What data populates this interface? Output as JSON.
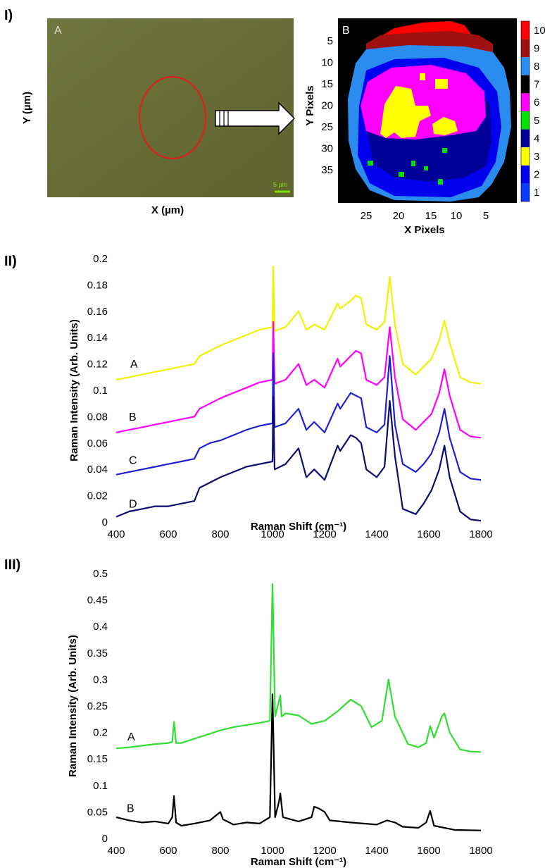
{
  "panels": {
    "p1": "I)",
    "p2": "II)",
    "p3": "III)"
  },
  "micrograph": {
    "label": "A",
    "xlabel": "X (µm)",
    "ylabel": "Y (µm)",
    "scalebar": "5 µm",
    "colors": {
      "background": "#6b7038",
      "circle": "#e0201c",
      "scalebar": "#7fe000"
    }
  },
  "cluster_map": {
    "label": "B",
    "xlabel": "X Pixels",
    "ylabel": "Y Pixels",
    "x_ticks": [
      "25",
      "20",
      "15",
      "10",
      "5"
    ],
    "y_ticks": [
      "5",
      "10",
      "15",
      "20",
      "25",
      "30",
      "35"
    ],
    "colorbar": [
      {
        "value": "10",
        "color": "#ff0000"
      },
      {
        "value": "9",
        "color": "#a01010"
      },
      {
        "value": "8",
        "color": "#2b8cf0"
      },
      {
        "value": "7",
        "color": "#000000"
      },
      {
        "value": "6",
        "color": "#ff00ff"
      },
      {
        "value": "5",
        "color": "#00e000"
      },
      {
        "value": "4",
        "color": "#000099"
      },
      {
        "value": "3",
        "color": "#ffff00"
      },
      {
        "value": "2",
        "color": "#0000ee"
      },
      {
        "value": "1",
        "color": "#0a3cff"
      }
    ]
  },
  "chart_data": [
    {
      "type": "line",
      "xlabel": "Raman Shift (cm⁻¹)",
      "ylabel": "Raman Intensity (Arb. Units)",
      "xlim": [
        400,
        1800
      ],
      "ylim": [
        0,
        0.2
      ],
      "x_ticks": [
        "400",
        "600",
        "800",
        "1000",
        "1200",
        "1400",
        "1600",
        "1800"
      ],
      "y_ticks": [
        "0",
        "0.02",
        "0.04",
        "0.06",
        "0.08",
        "0.1",
        "0.12",
        "0.14",
        "0.16",
        "0.18",
        "0.2"
      ],
      "series": [
        {
          "name": "A",
          "color": "#f2f200",
          "x": [
            400,
            450,
            500,
            550,
            600,
            650,
            700,
            720,
            760,
            800,
            850,
            900,
            950,
            1000,
            1003,
            1008,
            1050,
            1100,
            1130,
            1160,
            1200,
            1250,
            1260,
            1300,
            1320,
            1340,
            1360,
            1400,
            1430,
            1450,
            1470,
            1500,
            1550,
            1580,
            1610,
            1640,
            1660,
            1680,
            1720,
            1760,
            1800
          ],
          "y": [
            0.108,
            0.11,
            0.112,
            0.114,
            0.116,
            0.118,
            0.12,
            0.126,
            0.13,
            0.134,
            0.138,
            0.142,
            0.146,
            0.148,
            0.194,
            0.145,
            0.148,
            0.16,
            0.146,
            0.15,
            0.146,
            0.166,
            0.162,
            0.168,
            0.172,
            0.17,
            0.15,
            0.146,
            0.152,
            0.186,
            0.15,
            0.12,
            0.112,
            0.118,
            0.124,
            0.138,
            0.153,
            0.136,
            0.11,
            0.106,
            0.105
          ]
        },
        {
          "name": "B",
          "color": "#ff00ff",
          "x": [
            400,
            450,
            500,
            550,
            600,
            650,
            700,
            720,
            760,
            800,
            850,
            900,
            950,
            1000,
            1003,
            1008,
            1050,
            1100,
            1130,
            1160,
            1200,
            1250,
            1260,
            1300,
            1320,
            1340,
            1360,
            1400,
            1430,
            1450,
            1470,
            1500,
            1550,
            1580,
            1610,
            1640,
            1660,
            1680,
            1720,
            1760,
            1800
          ],
          "y": [
            0.068,
            0.07,
            0.072,
            0.074,
            0.076,
            0.078,
            0.08,
            0.086,
            0.09,
            0.094,
            0.098,
            0.102,
            0.106,
            0.108,
            0.152,
            0.105,
            0.108,
            0.12,
            0.104,
            0.108,
            0.102,
            0.124,
            0.118,
            0.126,
            0.13,
            0.128,
            0.108,
            0.104,
            0.11,
            0.148,
            0.11,
            0.078,
            0.07,
            0.076,
            0.082,
            0.098,
            0.116,
            0.096,
            0.07,
            0.065,
            0.064
          ]
        },
        {
          "name": "C",
          "color": "#2020d0",
          "x": [
            400,
            450,
            500,
            550,
            600,
            650,
            700,
            720,
            760,
            800,
            850,
            900,
            950,
            1000,
            1003,
            1008,
            1050,
            1100,
            1130,
            1160,
            1200,
            1250,
            1260,
            1300,
            1320,
            1340,
            1360,
            1400,
            1430,
            1450,
            1470,
            1500,
            1550,
            1580,
            1610,
            1640,
            1660,
            1680,
            1720,
            1760,
            1800
          ],
          "y": [
            0.036,
            0.038,
            0.04,
            0.042,
            0.044,
            0.046,
            0.048,
            0.056,
            0.06,
            0.062,
            0.066,
            0.07,
            0.073,
            0.075,
            0.128,
            0.072,
            0.075,
            0.086,
            0.07,
            0.076,
            0.068,
            0.09,
            0.086,
            0.098,
            0.096,
            0.094,
            0.072,
            0.068,
            0.074,
            0.126,
            0.074,
            0.044,
            0.038,
            0.044,
            0.052,
            0.068,
            0.086,
            0.064,
            0.038,
            0.033,
            0.032
          ]
        },
        {
          "name": "D",
          "color": "#0c0c70",
          "x": [
            400,
            450,
            500,
            550,
            600,
            650,
            700,
            720,
            760,
            800,
            850,
            900,
            950,
            1000,
            1003,
            1008,
            1050,
            1100,
            1130,
            1160,
            1200,
            1250,
            1260,
            1300,
            1320,
            1340,
            1360,
            1400,
            1430,
            1450,
            1470,
            1500,
            1550,
            1580,
            1610,
            1640,
            1660,
            1680,
            1720,
            1760,
            1800
          ],
          "y": [
            0.004,
            0.008,
            0.01,
            0.012,
            0.012,
            0.014,
            0.016,
            0.026,
            0.03,
            0.034,
            0.038,
            0.042,
            0.044,
            0.046,
            0.095,
            0.04,
            0.044,
            0.056,
            0.034,
            0.04,
            0.032,
            0.058,
            0.054,
            0.066,
            0.064,
            0.06,
            0.04,
            0.034,
            0.042,
            0.092,
            0.05,
            0.01,
            0.006,
            0.014,
            0.024,
            0.04,
            0.058,
            0.034,
            0.008,
            0.002,
            0.001
          ]
        }
      ]
    },
    {
      "type": "line",
      "xlabel": "Raman Shift (cm⁻¹)",
      "ylabel": "Raman Intensity (Arb. Units)",
      "xlim": [
        400,
        1800
      ],
      "ylim": [
        0,
        0.5
      ],
      "x_ticks": [
        "400",
        "600",
        "800",
        "1000",
        "1200",
        "1400",
        "1600",
        "1800"
      ],
      "y_ticks": [
        "0",
        "0.05",
        "0.1",
        "0.15",
        "0.2",
        "0.25",
        "0.3",
        "0.35",
        "0.4",
        "0.45",
        "0.5"
      ],
      "series": [
        {
          "name": "A",
          "color": "#33dd33",
          "x": [
            400,
            450,
            500,
            550,
            600,
            615,
            622,
            630,
            650,
            700,
            750,
            800,
            850,
            900,
            950,
            990,
            1000,
            1010,
            1030,
            1035,
            1050,
            1100,
            1150,
            1200,
            1250,
            1300,
            1340,
            1380,
            1420,
            1445,
            1470,
            1520,
            1560,
            1590,
            1605,
            1620,
            1650,
            1660,
            1680,
            1720,
            1760,
            1800
          ],
          "y": [
            0.17,
            0.172,
            0.175,
            0.178,
            0.18,
            0.182,
            0.22,
            0.18,
            0.18,
            0.188,
            0.196,
            0.204,
            0.21,
            0.214,
            0.218,
            0.222,
            0.48,
            0.23,
            0.27,
            0.23,
            0.236,
            0.232,
            0.216,
            0.222,
            0.24,
            0.262,
            0.25,
            0.21,
            0.222,
            0.3,
            0.23,
            0.178,
            0.172,
            0.18,
            0.212,
            0.19,
            0.23,
            0.236,
            0.2,
            0.168,
            0.164,
            0.163
          ]
        },
        {
          "name": "B",
          "color": "#000000",
          "x": [
            400,
            450,
            500,
            550,
            600,
            615,
            622,
            630,
            650,
            700,
            760,
            790,
            800,
            810,
            850,
            900,
            950,
            990,
            1000,
            1010,
            1025,
            1030,
            1040,
            1100,
            1150,
            1160,
            1180,
            1200,
            1220,
            1300,
            1400,
            1440,
            1470,
            1500,
            1560,
            1590,
            1605,
            1620,
            1700,
            1800
          ],
          "y": [
            0.04,
            0.034,
            0.03,
            0.032,
            0.028,
            0.04,
            0.08,
            0.03,
            0.024,
            0.028,
            0.034,
            0.046,
            0.05,
            0.036,
            0.026,
            0.03,
            0.028,
            0.04,
            0.272,
            0.04,
            0.07,
            0.085,
            0.04,
            0.032,
            0.04,
            0.06,
            0.056,
            0.05,
            0.034,
            0.03,
            0.026,
            0.034,
            0.03,
            0.022,
            0.02,
            0.03,
            0.052,
            0.024,
            0.016,
            0.015
          ]
        }
      ]
    }
  ]
}
